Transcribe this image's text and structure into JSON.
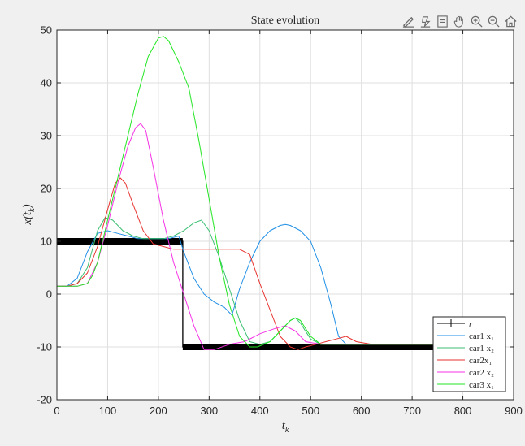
{
  "toolbar": {
    "buttons": [
      {
        "name": "brush-icon"
      },
      {
        "name": "data-tips-icon"
      },
      {
        "name": "rotate-icon"
      },
      {
        "name": "pan-hand-icon"
      },
      {
        "name": "zoom-in-icon"
      },
      {
        "name": "zoom-out-icon"
      },
      {
        "name": "home-icon"
      }
    ]
  },
  "chart_data": {
    "type": "line",
    "title": "State evolution",
    "xlabel_base": "t",
    "xlabel_sub": "k",
    "ylabel_base": "x(t",
    "ylabel_sub": "k",
    "ylabel_close": ")",
    "xlim": [
      0,
      900
    ],
    "ylim": [
      -20,
      50
    ],
    "xticks": [
      0,
      100,
      200,
      300,
      400,
      500,
      600,
      700,
      800,
      900
    ],
    "yticks": [
      -20,
      -10,
      0,
      10,
      20,
      30,
      40,
      50
    ],
    "grid": true,
    "legend_position": "bottom-right",
    "series": [
      {
        "name": "r",
        "legend_label": "r",
        "color": "#000000",
        "thick": true,
        "x": [
          0,
          248,
          248,
          750
        ],
        "y": [
          10,
          10,
          -10,
          -10
        ]
      },
      {
        "name": "car1 x1",
        "legend_label": "car1  x₁",
        "color": "#1f8fe6",
        "x": [
          0,
          20,
          40,
          60,
          80,
          100,
          120,
          140,
          160,
          180,
          200,
          220,
          240,
          250,
          270,
          290,
          310,
          330,
          345,
          360,
          380,
          400,
          420,
          440,
          450,
          460,
          480,
          500,
          520,
          540,
          555,
          570,
          600,
          650,
          700,
          750
        ],
        "y": [
          1.5,
          1.5,
          3,
          8,
          11.5,
          12,
          11.5,
          11,
          10.5,
          10.5,
          10.5,
          10.5,
          11,
          8,
          3,
          0,
          -1.5,
          -2.5,
          -4,
          1,
          6,
          10,
          12,
          13,
          13.2,
          13,
          12,
          10,
          5,
          -2,
          -8,
          -9.5,
          -9.5,
          -9.5,
          -9.5,
          -9.5
        ]
      },
      {
        "name": "car1 x2",
        "legend_label": "car1  x₂",
        "color": "#3cbf73",
        "x": [
          0,
          20,
          40,
          60,
          80,
          95,
          110,
          130,
          150,
          170,
          190,
          210,
          230,
          250,
          270,
          285,
          300,
          320,
          340,
          360,
          380,
          400,
          420,
          440,
          460,
          470,
          480,
          500,
          520,
          560,
          600,
          650,
          700,
          750
        ],
        "y": [
          1.5,
          1.5,
          2,
          5,
          12,
          14.5,
          14,
          12,
          11,
          10.5,
          10.5,
          10.5,
          11,
          12,
          13.5,
          14,
          12,
          7,
          1,
          -5,
          -9,
          -9.5,
          -9,
          -7,
          -5,
          -4.5,
          -5.5,
          -8.5,
          -9.5,
          -9.5,
          -9.5,
          -9.5,
          -9.5,
          -9.5
        ]
      },
      {
        "name": "car2 x1",
        "legend_label": "car2x₁",
        "color": "#e8322e",
        "x": [
          0,
          20,
          40,
          60,
          80,
          100,
          115,
          125,
          135,
          150,
          170,
          190,
          210,
          230,
          250,
          280,
          320,
          360,
          380,
          400,
          420,
          440,
          460,
          475,
          490,
          510,
          530,
          550,
          570,
          590,
          620,
          660,
          700,
          750
        ],
        "y": [
          1.5,
          1.5,
          2,
          4,
          9,
          16,
          21,
          22,
          21,
          17,
          12,
          9.5,
          9,
          8.5,
          8.5,
          8.5,
          8.5,
          8.5,
          7.5,
          2,
          -3,
          -8,
          -10,
          -10.5,
          -10,
          -9.5,
          -9,
          -8.5,
          -8,
          -9,
          -9.5,
          -9.5,
          -9.5,
          -9.5
        ]
      },
      {
        "name": "car2 x2",
        "legend_label": "car2  x₂",
        "color": "#f533e6",
        "x": [
          0,
          20,
          40,
          60,
          80,
          100,
          120,
          140,
          155,
          165,
          175,
          190,
          210,
          230,
          250,
          270,
          290,
          310,
          340,
          370,
          400,
          430,
          450,
          470,
          490,
          520,
          550,
          600,
          700,
          750
        ],
        "y": [
          1.5,
          1.5,
          1.5,
          2,
          6,
          13,
          21,
          28,
          31.5,
          32.3,
          31,
          24,
          14,
          6,
          0,
          -6,
          -10.5,
          -10.5,
          -9.5,
          -9,
          -7.5,
          -6.5,
          -6,
          -7,
          -9,
          -9.5,
          -9.5,
          -9.5,
          -9.5,
          -9.5
        ]
      },
      {
        "name": "car3 x1",
        "legend_label": "car3  x₁",
        "color": "#22e622",
        "x": [
          0,
          20,
          40,
          60,
          70,
          80,
          100,
          120,
          140,
          160,
          180,
          200,
          210,
          220,
          240,
          260,
          280,
          300,
          320,
          340,
          360,
          380,
          395,
          420,
          440,
          460,
          470,
          480,
          500,
          520,
          560,
          600,
          700,
          750
        ],
        "y": [
          1.5,
          1.5,
          1.5,
          2,
          3.5,
          6,
          14,
          22,
          30,
          38,
          45,
          48.5,
          48.8,
          48,
          44,
          39,
          29,
          18,
          7,
          -2,
          -8,
          -10,
          -10,
          -9,
          -7,
          -5,
          -4.5,
          -5,
          -8,
          -9.5,
          -9.5,
          -9.5,
          -9.5,
          -9.5
        ]
      }
    ]
  }
}
